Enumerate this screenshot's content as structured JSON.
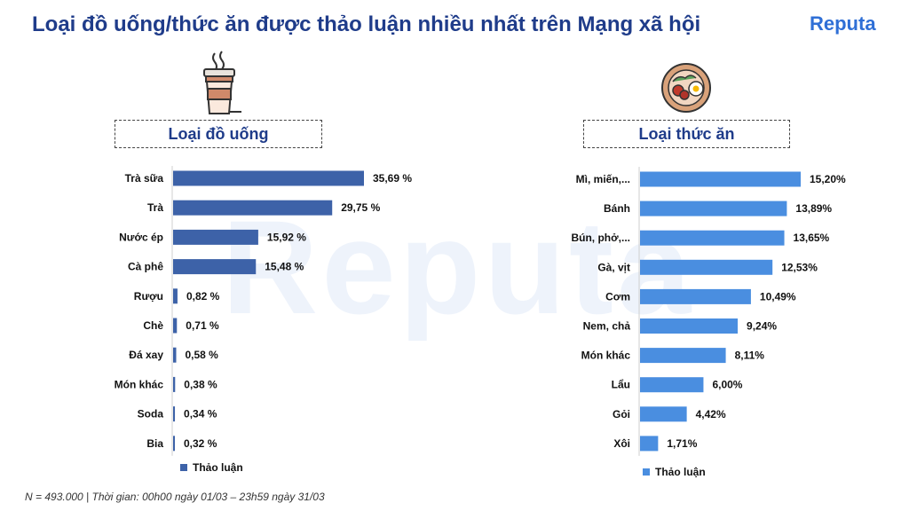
{
  "header": {
    "title": "Loại đồ uống/thức ăn được thảo luận nhiều nhất trên Mạng xã hội",
    "brand": "Reputa"
  },
  "footer": {
    "note": "N = 493.000 | Thời gian: 00h00 ngày 01/03 – 23h59 ngày 31/03"
  },
  "icons": {
    "drinks": "coffee-cup-icon",
    "food": "food-plate-icon"
  },
  "colors": {
    "drinks_bar": "#3d62a8",
    "food_bar": "#4a8ee0",
    "title": "#1f3c8a"
  },
  "chart_data": [
    {
      "type": "bar",
      "orientation": "horizontal",
      "title": "Loại đồ uống",
      "categories": [
        "Trà sữa",
        "Trà",
        "Nước ép",
        "Cà phê",
        "Rượu",
        "Chè",
        "Đá xay",
        "Món khác",
        "Soda",
        "Bia"
      ],
      "series": [
        {
          "name": "Thảo luận",
          "values": [
            35.69,
            29.75,
            15.92,
            15.48,
            0.82,
            0.71,
            0.58,
            0.38,
            0.34,
            0.32
          ],
          "labels": [
            "35,69 %",
            "29,75 %",
            "15,92 %",
            "15,48 %",
            "0,82 %",
            "0,71 %",
            "0,58 %",
            "0,38 %",
            "0,34 %",
            "0,32 %"
          ]
        }
      ],
      "legend": "bottom"
    },
    {
      "type": "bar",
      "orientation": "horizontal",
      "title": "Loại thức ăn",
      "categories": [
        "Mì, miến,...",
        "Bánh",
        "Bún, phở,...",
        "Gà, vịt",
        "Cơm",
        "Nem, chả",
        "Món khác",
        "Lẩu",
        "Gỏi",
        "Xôi"
      ],
      "series": [
        {
          "name": "Thảo luận",
          "values": [
            15.2,
            13.89,
            13.65,
            12.53,
            10.49,
            9.24,
            8.11,
            6.0,
            4.42,
            1.71
          ],
          "labels": [
            "15,20%",
            "13,89%",
            "13,65%",
            "12,53%",
            "10,49%",
            "9,24%",
            "8,11%",
            "6,00%",
            "4,42%",
            "1,71%"
          ]
        }
      ],
      "legend": "bottom"
    }
  ]
}
